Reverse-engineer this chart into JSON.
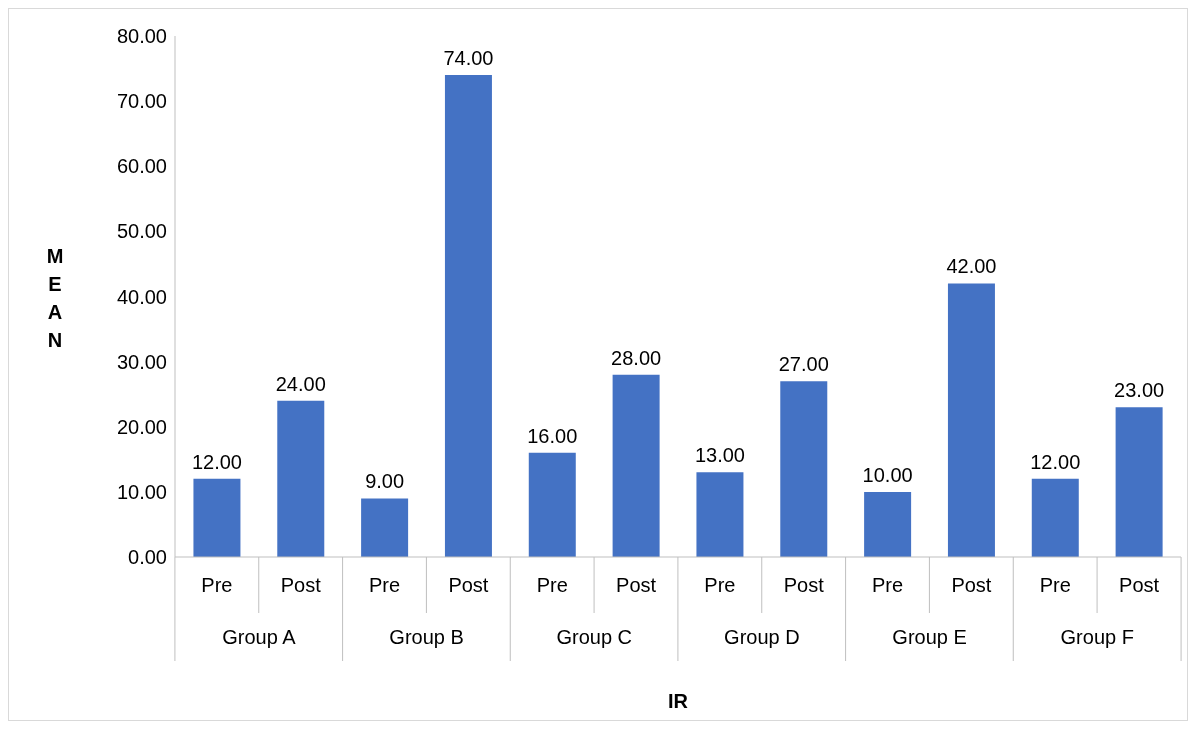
{
  "chart_data": {
    "type": "bar",
    "xlabel": "IR",
    "ylabel": "MEAN",
    "categories": [
      "Pre",
      "Post",
      "Pre",
      "Post",
      "Pre",
      "Post",
      "Pre",
      "Post",
      "Pre",
      "Post",
      "Pre",
      "Post"
    ],
    "annotations": [
      "Group A",
      "Group B",
      "Group C",
      "Group D",
      "Group E",
      "Group F"
    ],
    "values": [
      12,
      24,
      9,
      74,
      16,
      28,
      13,
      27,
      10,
      42,
      12,
      23
    ],
    "value_labels": [
      "12.00",
      "24.00",
      "9.00",
      "74.00",
      "16.00",
      "28.00",
      "13.00",
      "27.00",
      "10.00",
      "42.00",
      "12.00",
      "23.00"
    ],
    "color": "#4472c4",
    "ylim": [
      0,
      80
    ],
    "yticks": [
      {
        "value": 0,
        "label": "0.00"
      },
      {
        "value": 10,
        "label": "10.00"
      },
      {
        "value": 20,
        "label": "20.00"
      },
      {
        "value": 30,
        "label": "30.00"
      },
      {
        "value": 40,
        "label": "40.00"
      },
      {
        "value": 50,
        "label": "50.00"
      },
      {
        "value": 60,
        "label": "60.00"
      },
      {
        "value": 70,
        "label": "70.00"
      },
      {
        "value": 80,
        "label": "80.00"
      }
    ],
    "grid": false,
    "legend": false
  }
}
